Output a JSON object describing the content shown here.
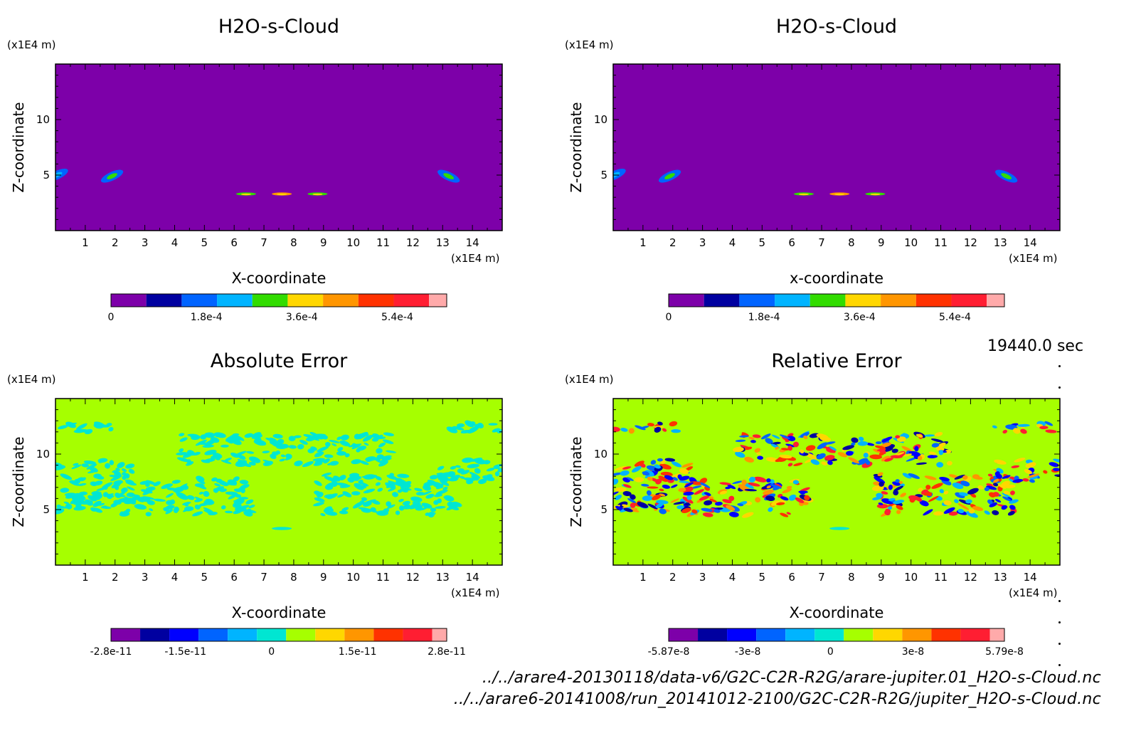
{
  "colors": {
    "background": "#ffffff",
    "panel_purple": "#7d00a9",
    "panel_green": "#a6ff00",
    "palette": [
      "#7d00a9",
      "#0000a0",
      "#0000ff",
      "#0064ff",
      "#00b4ff",
      "#00e6d2",
      "#32dc00",
      "#a6ff00",
      "#ffd700",
      "#ff9600",
      "#ff3200",
      "#ff1e32",
      "#ffaaaa"
    ]
  },
  "time_label": "19440.0 sec",
  "footer": {
    "line1": "../../arare4-20130118/data-v6/G2C-C2R-R2G/arare-jupiter.01_H2O-s-Cloud.nc",
    "line2": "../../arare6-20141008/run_20141012-2100/G2C-C2R-R2G/jupiter_H2O-s-Cloud.nc"
  },
  "chart_data": [
    {
      "type": "heatmap",
      "title": "H2O-s-Cloud",
      "xlabel": "X-coordinate",
      "ylabel": "Z-coordinate",
      "x_unit": "(x1E4 m)",
      "y_unit": "(x1E4 m)",
      "xlim": [
        0,
        15
      ],
      "ylim": [
        0,
        15
      ],
      "x_ticks": [
        1,
        2,
        3,
        4,
        5,
        6,
        7,
        8,
        9,
        10,
        11,
        12,
        13,
        14
      ],
      "y_ticks": [
        5,
        10
      ],
      "background_value": 0,
      "features": [
        {
          "kind": "blob",
          "x": 0.05,
          "z": 5.0,
          "value": 0.00012
        },
        {
          "kind": "blob",
          "x": 1.9,
          "z": 4.9,
          "value": 0.00015
        },
        {
          "kind": "blob",
          "x": 13.2,
          "z": 4.9,
          "value": 0.00015
        },
        {
          "kind": "streak",
          "x": 6.4,
          "z": 3.3,
          "value": 0.00028
        },
        {
          "kind": "streak",
          "x": 7.6,
          "z": 3.3,
          "value": 0.00039
        },
        {
          "kind": "streak",
          "x": 8.8,
          "z": 3.3,
          "value": 0.00028
        }
      ],
      "colorbar": {
        "min": 0,
        "max": 0.0006,
        "tick_values": [
          0,
          0.00018,
          0.00036,
          0.00054
        ],
        "tick_labels": [
          "0",
          "1.8e-4",
          "3.6e-4",
          "5.4e-4"
        ],
        "colors": [
          "#7d00a9",
          "#0000a0",
          "#0064ff",
          "#00b4ff",
          "#32dc00",
          "#ffd700",
          "#ff9600",
          "#ff3200",
          "#ff1e32",
          "#ffaaaa"
        ]
      }
    },
    {
      "type": "heatmap",
      "title": "H2O-s-Cloud",
      "xlabel": "x-coordinate",
      "ylabel": "Z-coordinate",
      "x_unit": "(x1E4 m)",
      "y_unit": "(x1E4 m)",
      "xlim": [
        0,
        15
      ],
      "ylim": [
        0,
        15
      ],
      "x_ticks": [
        1,
        2,
        3,
        4,
        5,
        6,
        7,
        8,
        9,
        10,
        11,
        12,
        13,
        14
      ],
      "y_ticks": [
        5,
        10
      ],
      "background_value": 0,
      "features": [
        {
          "kind": "blob",
          "x": 0.05,
          "z": 5.0,
          "value": 0.00012
        },
        {
          "kind": "blob",
          "x": 1.9,
          "z": 4.9,
          "value": 0.00015
        },
        {
          "kind": "blob",
          "x": 13.2,
          "z": 4.9,
          "value": 0.00015
        },
        {
          "kind": "streak",
          "x": 6.4,
          "z": 3.3,
          "value": 0.00028
        },
        {
          "kind": "streak",
          "x": 7.6,
          "z": 3.3,
          "value": 0.00039
        },
        {
          "kind": "streak",
          "x": 8.8,
          "z": 3.3,
          "value": 0.00028
        }
      ],
      "colorbar": {
        "min": 0,
        "max": 0.0006,
        "tick_values": [
          0,
          0.00018,
          0.00036,
          0.00054
        ],
        "tick_labels": [
          "0",
          "1.8e-4",
          "3.6e-4",
          "5.4e-4"
        ],
        "colors": [
          "#7d00a9",
          "#0000a0",
          "#0064ff",
          "#00b4ff",
          "#32dc00",
          "#ffd700",
          "#ff9600",
          "#ff3200",
          "#ff1e32",
          "#ffaaaa"
        ]
      }
    },
    {
      "type": "heatmap",
      "title": "Absolute Error",
      "xlabel": "X-coordinate",
      "ylabel": "Z-coordinate",
      "x_unit": "(x1E4 m)",
      "y_unit": "(x1E4 m)",
      "xlim": [
        0,
        15
      ],
      "ylim": [
        0,
        15
      ],
      "x_ticks": [
        1,
        2,
        3,
        4,
        5,
        6,
        7,
        8,
        9,
        10,
        11,
        12,
        13,
        14
      ],
      "y_ticks": [
        5,
        10
      ],
      "background_value": 0,
      "features": [
        {
          "kind": "noise_band",
          "x0": 0.0,
          "x1": 2.2,
          "z0": 12.0,
          "z1": 12.8,
          "value": -4e-12
        },
        {
          "kind": "noise_band",
          "x0": 0.0,
          "x1": 2.6,
          "z0": 4.8,
          "z1": 9.5,
          "value": -4e-12
        },
        {
          "kind": "noise_band",
          "x0": 2.2,
          "x1": 6.6,
          "z0": 4.5,
          "z1": 7.8,
          "value": -4e-12
        },
        {
          "kind": "noise_band",
          "x0": 4.2,
          "x1": 11.3,
          "z0": 9.0,
          "z1": 11.8,
          "value": -4e-12
        },
        {
          "kind": "noise_band",
          "x0": 8.8,
          "x1": 13.5,
          "z0": 4.5,
          "z1": 8.2,
          "value": -4e-12
        },
        {
          "kind": "noise_band",
          "x0": 12.8,
          "x1": 15.0,
          "z0": 7.5,
          "z1": 9.5,
          "value": -4e-12
        },
        {
          "kind": "noise_band",
          "x0": 12.8,
          "x1": 15.0,
          "z0": 12.0,
          "z1": 12.8,
          "value": -4e-12
        },
        {
          "kind": "streak",
          "x": 7.6,
          "z": 3.3,
          "value": -4e-12
        }
      ],
      "colorbar": {
        "min": -2.8e-11,
        "max": 2.8e-11,
        "tick_values": [
          -2.8e-11,
          -1.5e-11,
          0,
          1.5e-11,
          2.8e-11
        ],
        "tick_labels": [
          "-2.8e-11",
          "-1.5e-11",
          "0",
          "1.5e-11",
          "2.8e-11"
        ],
        "colors": [
          "#7d00a9",
          "#0000a0",
          "#0000ff",
          "#0064ff",
          "#00b4ff",
          "#00e6d2",
          "#a6ff00",
          "#ffd700",
          "#ff9600",
          "#ff3200",
          "#ff1e32",
          "#ffaaaa"
        ]
      }
    },
    {
      "type": "heatmap",
      "title": "Relative Error",
      "xlabel": "X-coordinate",
      "ylabel": "Z-coordinate",
      "x_unit": "(x1E4 m)",
      "y_unit": "(x1E4 m)",
      "xlim": [
        0,
        15
      ],
      "ylim": [
        0,
        15
      ],
      "x_ticks": [
        1,
        2,
        3,
        4,
        5,
        6,
        7,
        8,
        9,
        10,
        11,
        12,
        13,
        14
      ],
      "y_ticks": [
        5,
        10
      ],
      "background_value": 0,
      "features": [
        {
          "kind": "noise_band",
          "x0": 0.0,
          "x1": 2.2,
          "z0": 12.0,
          "z1": 12.8,
          "value": 3e-08
        },
        {
          "kind": "noise_band",
          "x0": 0.0,
          "x1": 2.6,
          "z0": 4.8,
          "z1": 9.5,
          "value": 3e-08
        },
        {
          "kind": "noise_band",
          "x0": 2.2,
          "x1": 6.6,
          "z0": 4.5,
          "z1": 7.8,
          "value": 3e-08
        },
        {
          "kind": "noise_band",
          "x0": 4.2,
          "x1": 11.3,
          "z0": 9.0,
          "z1": 11.8,
          "value": -3e-08
        },
        {
          "kind": "noise_band",
          "x0": 8.8,
          "x1": 13.5,
          "z0": 4.5,
          "z1": 8.2,
          "value": -3e-08
        },
        {
          "kind": "noise_band",
          "x0": 12.8,
          "x1": 15.0,
          "z0": 7.5,
          "z1": 9.5,
          "value": -3e-08
        },
        {
          "kind": "noise_band",
          "x0": 12.8,
          "x1": 15.0,
          "z0": 12.0,
          "z1": 12.8,
          "value": -3e-08
        },
        {
          "kind": "streak",
          "x": 7.6,
          "z": 3.3,
          "value": -1e-08
        }
      ],
      "colorbar": {
        "min": -5.87e-08,
        "max": 5.79e-08,
        "tick_values": [
          -5.87e-08,
          -3e-08,
          0,
          3e-08,
          5.79e-08
        ],
        "tick_labels": [
          "-5.87e-8",
          "-3e-8",
          "0",
          "3e-8",
          "5.79e-8"
        ],
        "colors": [
          "#7d00a9",
          "#0000a0",
          "#0000ff",
          "#0064ff",
          "#00b4ff",
          "#00e6d2",
          "#a6ff00",
          "#ffd700",
          "#ff9600",
          "#ff3200",
          "#ff1e32",
          "#ffaaaa"
        ]
      }
    }
  ]
}
